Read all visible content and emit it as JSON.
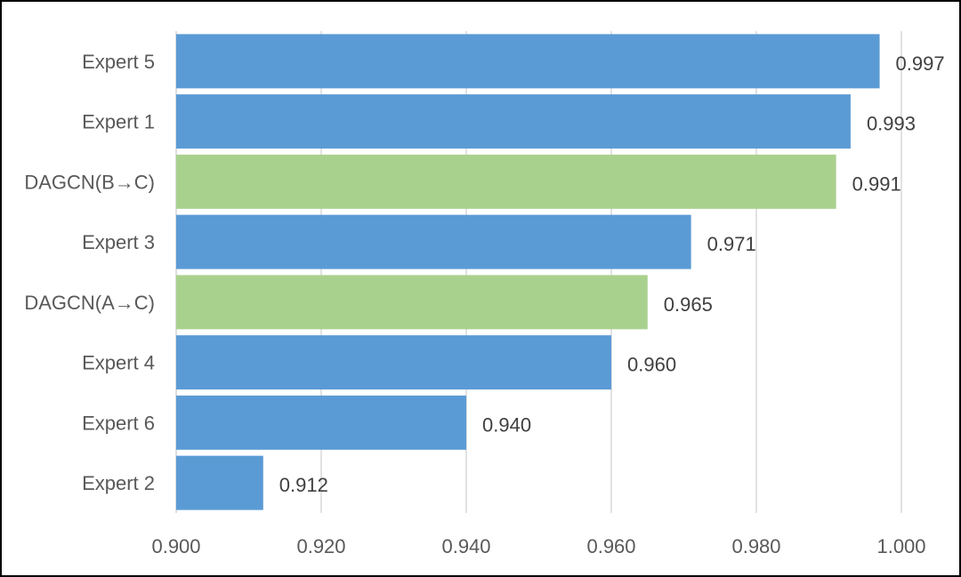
{
  "chart_data": {
    "type": "bar",
    "orientation": "horizontal",
    "categories": [
      "Expert 5",
      "Expert 1",
      "DAGCN(B→C)",
      "Expert 3",
      "DAGCN(A→C)",
      "Expert 4",
      "Expert 6",
      "Expert 2"
    ],
    "values": [
      0.997,
      0.993,
      0.991,
      0.971,
      0.965,
      0.96,
      0.94,
      0.912
    ],
    "data_labels": [
      "0.997",
      "0.993",
      "0.991",
      "0.971",
      "0.965",
      "0.960",
      "0.940",
      "0.912"
    ],
    "bar_colors": [
      "#5B9BD5",
      "#5B9BD5",
      "#A9D18E",
      "#5B9BD5",
      "#A9D18E",
      "#5B9BD5",
      "#5B9BD5",
      "#5B9BD5"
    ],
    "xlim": [
      0.9,
      1.0
    ],
    "x_ticks": [
      0.9,
      0.92,
      0.94,
      0.96,
      0.98,
      1.0
    ],
    "x_tick_labels": [
      "0.900",
      "0.920",
      "0.940",
      "0.960",
      "0.980",
      "1.000"
    ],
    "grid": "vertical",
    "legend": "none",
    "title": "",
    "xlabel": "",
    "ylabel": ""
  }
}
